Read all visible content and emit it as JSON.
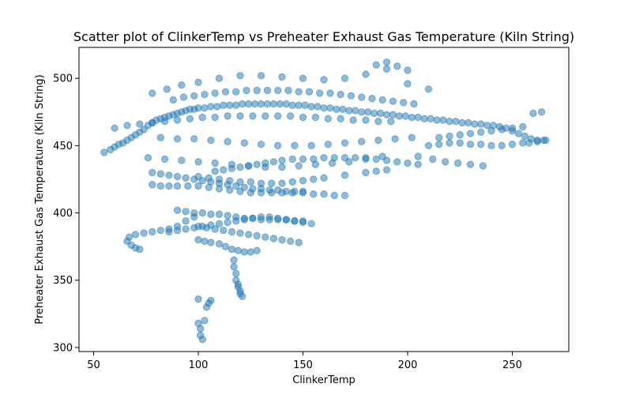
{
  "chart_data": {
    "type": "scatter",
    "title": "Scatter plot of ClinkerTemp vs Preheater Exhaust Gas Temperature  (Kiln String)",
    "xlabel": "ClinkerTemp",
    "ylabel": "Preheater Exhaust Gas Temperature  (Kiln String)",
    "xlim": [
      43,
      277
    ],
    "ylim": [
      297,
      523
    ],
    "xticks": [
      50,
      100,
      150,
      200,
      250
    ],
    "yticks": [
      300,
      350,
      400,
      450,
      500
    ],
    "grid": false,
    "legend": "none",
    "marker_color": "#1f77b4",
    "marker_alpha": 0.5,
    "series": [
      {
        "x": [
          55,
          58,
          60,
          62,
          64,
          66,
          68,
          70,
          72,
          74,
          76,
          78,
          80,
          82,
          84,
          86,
          88,
          90,
          92,
          94,
          96,
          98,
          100,
          103,
          106,
          109,
          112,
          115,
          118,
          121,
          124,
          127,
          130,
          133,
          136,
          139,
          142,
          145,
          148,
          151,
          154,
          157,
          160,
          163,
          166,
          169,
          172,
          175,
          178,
          181,
          184,
          187,
          190,
          193,
          196,
          199,
          202,
          205,
          208,
          211,
          214,
          217,
          220,
          223,
          226,
          229,
          232,
          235,
          238,
          241,
          244,
          247,
          250,
          253,
          256,
          259,
          262,
          265,
          78,
          85,
          92,
          100,
          110,
          120,
          130,
          140,
          150,
          160,
          170,
          180,
          190,
          200,
          210,
          82,
          90,
          98,
          106,
          114,
          122,
          130,
          138,
          146,
          154,
          162,
          170,
          178,
          186,
          194,
          202,
          76,
          84,
          92,
          100,
          108,
          116,
          124,
          132,
          140,
          148,
          156,
          164,
          172,
          180,
          188,
          100,
          105,
          110,
          115,
          120,
          125,
          130,
          135,
          140,
          145,
          150,
          155,
          160,
          170,
          180,
          185,
          190,
          215,
          220,
          225,
          230,
          235,
          240,
          245,
          250,
          255,
          260,
          264,
          60,
          66,
          72,
          78,
          84,
          90,
          96,
          102,
          108,
          114,
          120,
          126,
          132,
          138,
          144,
          150,
          156,
          162,
          168,
          174,
          180,
          186,
          192,
          88,
          93,
          98,
          103,
          108,
          113,
          118,
          123,
          128,
          133,
          138,
          143,
          148,
          153,
          158,
          163,
          168,
          173,
          178,
          183,
          188,
          193,
          198,
          203,
          78,
          82,
          86,
          90,
          94,
          98,
          102,
          106,
          110,
          114,
          118,
          122,
          126,
          130,
          134,
          138,
          142,
          146,
          150,
          210,
          215,
          220,
          225,
          230,
          235,
          240,
          245,
          250,
          255,
          258,
          262,
          266,
          205,
          212,
          218,
          224,
          230,
          236,
          185,
          190,
          195,
          200,
          78,
          82,
          86,
          90,
          95,
          100,
          105,
          110,
          115,
          120,
          125,
          130,
          135,
          140,
          145,
          150,
          155,
          160,
          165,
          170,
          90,
          94,
          98,
          102,
          106,
          110,
          114,
          118,
          122,
          126,
          130,
          134,
          138,
          142,
          146,
          150,
          100,
          104,
          108,
          112,
          116,
          120,
          124,
          128,
          132,
          136,
          140,
          144,
          148,
          86,
          90,
          94,
          98,
          102,
          106,
          110,
          114,
          118,
          122,
          126,
          130,
          134,
          138,
          142,
          146,
          150,
          154,
          67,
          70,
          74,
          78,
          82,
          86,
          90,
          94,
          98,
          66,
          68,
          70,
          72,
          100,
          103,
          106,
          110,
          113,
          116,
          119,
          122,
          125,
          128,
          117,
          117,
          118,
          118,
          119,
          119,
          120,
          120,
          121,
          100,
          100,
          101,
          101,
          102,
          103,
          104,
          105,
          106,
          108,
          112,
          116,
          120,
          124,
          128,
          132,
          136,
          140,
          145,
          150,
          155,
          160,
          165,
          170,
          175,
          180,
          185,
          190,
          195,
          200,
          205
        ],
        "y": [
          445,
          447,
          449,
          451,
          452,
          454,
          456,
          458,
          460,
          462,
          465,
          467,
          469,
          470,
          471,
          472,
          473,
          474,
          475,
          476,
          477,
          477,
          478,
          478,
          479,
          479,
          480,
          480,
          480,
          481,
          481,
          481,
          481,
          481,
          481,
          481,
          481,
          480,
          480,
          480,
          479,
          479,
          478,
          478,
          477,
          477,
          476,
          476,
          475,
          475,
          474,
          474,
          473,
          473,
          472,
          472,
          471,
          471,
          470,
          470,
          469,
          469,
          468,
          468,
          467,
          467,
          466,
          466,
          465,
          465,
          464,
          463,
          461,
          459,
          457,
          455,
          454,
          454,
          489,
          492,
          495,
          497,
          500,
          502,
          502,
          501,
          500,
          499,
          500,
          503,
          507,
          496,
          492,
          456,
          455,
          455,
          454,
          453,
          452,
          451,
          450,
          450,
          450,
          451,
          452,
          453,
          454,
          455,
          456,
          441,
          440,
          439,
          438,
          437,
          436,
          435,
          434,
          434,
          435,
          436,
          437,
          438,
          440,
          442,
          427,
          426,
          425,
          424,
          423,
          423,
          422,
          422,
          422,
          423,
          424,
          425,
          426,
          428,
          430,
          431,
          432,
          456,
          457,
          458,
          459,
          460,
          461,
          462,
          463,
          464,
          474,
          475,
          463,
          465,
          466,
          467,
          468,
          469,
          470,
          471,
          471,
          472,
          472,
          472,
          472,
          472,
          472,
          471,
          471,
          470,
          470,
          469,
          469,
          468,
          468,
          484,
          486,
          487,
          488,
          489,
          490,
          490,
          491,
          491,
          491,
          491,
          491,
          490,
          490,
          489,
          489,
          488,
          487,
          486,
          485,
          484,
          483,
          482,
          481,
          430,
          429,
          428,
          427,
          426,
          425,
          424,
          423,
          422,
          421,
          420,
          419,
          418,
          418,
          417,
          417,
          416,
          416,
          416,
          450,
          451,
          452,
          452,
          451,
          451,
          450,
          450,
          451,
          452,
          452,
          453,
          454,
          442,
          440,
          438,
          437,
          436,
          435,
          510,
          512,
          509,
          506,
          421,
          420,
          420,
          420,
          420,
          420,
          419,
          418,
          417,
          416,
          415,
          415,
          415,
          415,
          415,
          415,
          414,
          414,
          413,
          413,
          402,
          401,
          400,
          400,
          399,
          399,
          398,
          397,
          396,
          396,
          395,
          395,
          395,
          395,
          394,
          394,
          390,
          389,
          388,
          387,
          386,
          385,
          384,
          383,
          382,
          381,
          380,
          379,
          378,
          386,
          387,
          388,
          389,
          390,
          391,
          392,
          393,
          394,
          395,
          396,
          397,
          397,
          396,
          395,
          394,
          393,
          392,
          382,
          384,
          385,
          386,
          387,
          388,
          390,
          394,
          397,
          379,
          376,
          374,
          373,
          380,
          379,
          378,
          377,
          375,
          373,
          372,
          371,
          371,
          372,
          365,
          360,
          355,
          350,
          347,
          345,
          342,
          340,
          338,
          336,
          318,
          314,
          309,
          306,
          320,
          330,
          333,
          335,
          431,
          432,
          433,
          434,
          435,
          436,
          437,
          438,
          439,
          440,
          440,
          440,
          441,
          441,
          441,
          441,
          441,
          440,
          439,
          438,
          437,
          436
        ]
      }
    ]
  }
}
